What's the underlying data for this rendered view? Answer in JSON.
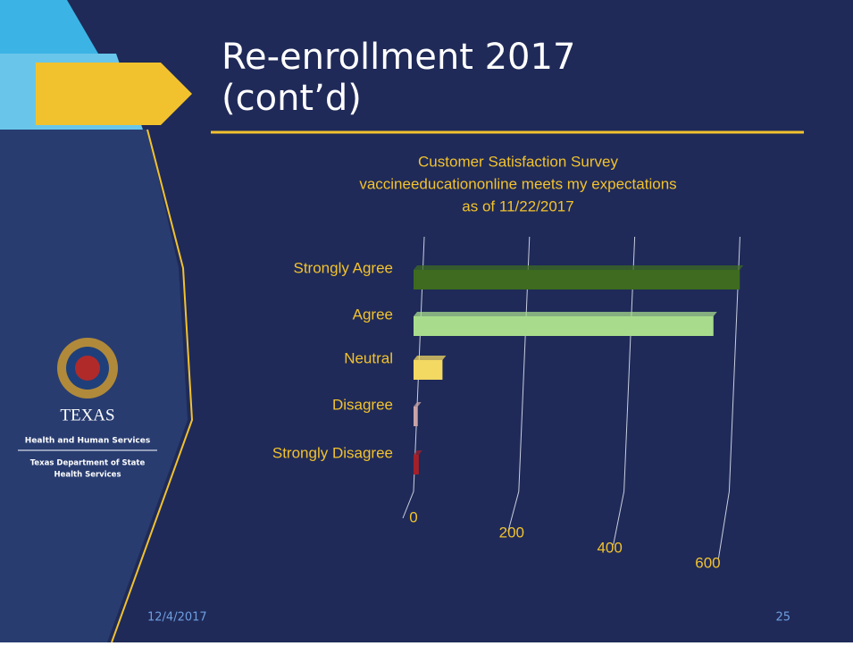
{
  "chart_data": {
    "type": "bar",
    "orientation": "horizontal",
    "title": [
      "Customer Satisfaction Survey",
      "vaccineeducationonline meets my expectations",
      "as of 11/22/2017"
    ],
    "categories": [
      "Strongly Agree",
      "Agree",
      "Neutral",
      "Disagree",
      "Strongly Disagree"
    ],
    "values": [
      620,
      570,
      55,
      8,
      10
    ],
    "colors": [
      "#3e6b1f",
      "#a8dc8c",
      "#f3d862",
      "#c9a3a6",
      "#a3202a"
    ],
    "xlim": [
      0,
      640
    ],
    "xticks": [
      0,
      200,
      400,
      600
    ],
    "grid": true
  },
  "slide": {
    "title": [
      "Re-enrollment 2017",
      "(cont’d)"
    ],
    "logo": {
      "name": "TEXAS",
      "line1": "Health and Human Services",
      "line2": [
        "Texas Department of State",
        "Health Services"
      ]
    },
    "date": "12/4/2017",
    "page": "25"
  }
}
